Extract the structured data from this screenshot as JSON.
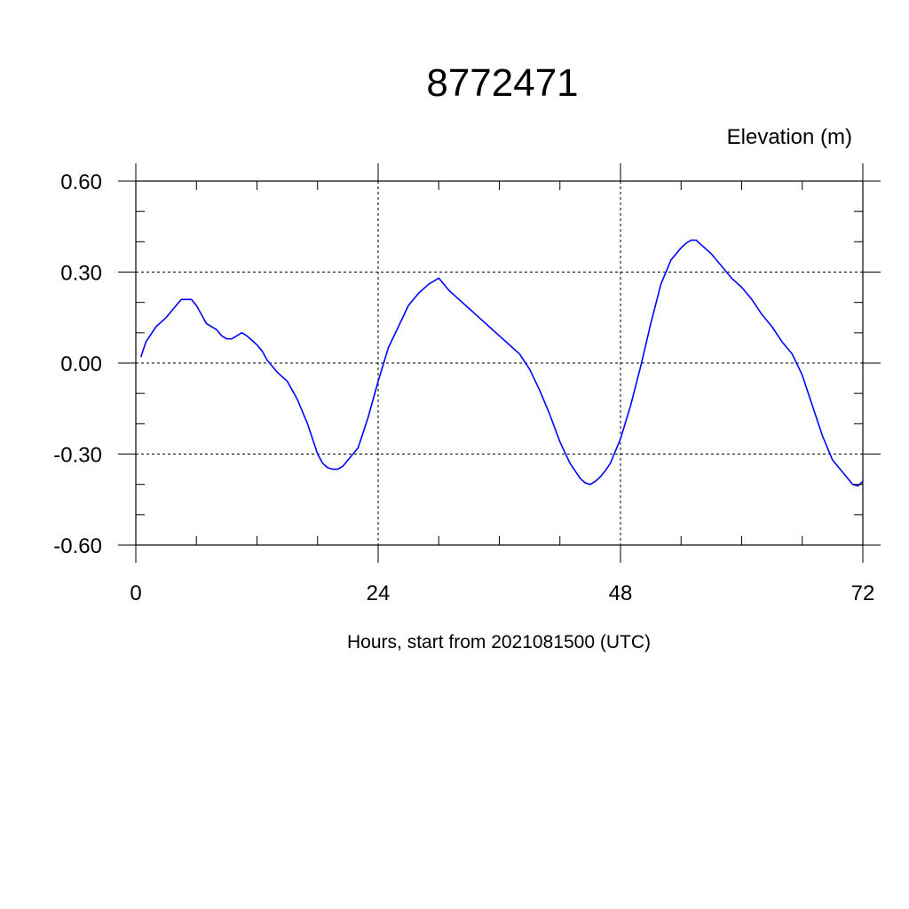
{
  "chart_data": {
    "type": "line",
    "title": "8772471",
    "subtitle": "Elevation (m)",
    "xlabel": "Hours, start from 2021081500 (UTC)",
    "ylabel": "",
    "xlim": [
      0,
      72
    ],
    "ylim": [
      -0.6,
      0.6
    ],
    "xticks": [
      0,
      24,
      48,
      72
    ],
    "xtick_labels": [
      "0",
      "24",
      "48",
      "72"
    ],
    "yticks": [
      -0.6,
      -0.3,
      0.0,
      0.3,
      0.6
    ],
    "ytick_labels": [
      "-0.60",
      "-0.30",
      "0.00",
      "0.30",
      "0.60"
    ],
    "grid": true,
    "series": [
      {
        "color": "#0000ff",
        "x": [
          0.5,
          1,
          2,
          3,
          3.5,
          4,
          4.5,
          5,
          5.5,
          6,
          6.5,
          7,
          8,
          8.5,
          9,
          9.5,
          10,
          10.5,
          11,
          12,
          12.5,
          13,
          14,
          15,
          16,
          17,
          18,
          18.5,
          19,
          19.5,
          20,
          20.5,
          21,
          22,
          23,
          24,
          25,
          26,
          27,
          28,
          29,
          30,
          31,
          32,
          33,
          34,
          35,
          36,
          37,
          38,
          39,
          40,
          41,
          42,
          43,
          44,
          44.5,
          45,
          45.5,
          46,
          46.5,
          47,
          48,
          49,
          50,
          51,
          52,
          53,
          54,
          54.5,
          55,
          55.5,
          56,
          57,
          58,
          59,
          60,
          61,
          62,
          63,
          64,
          65,
          66,
          67,
          68,
          69,
          70,
          71,
          71.5,
          72
        ],
        "y": [
          0.02,
          0.07,
          0.12,
          0.15,
          0.17,
          0.19,
          0.21,
          0.21,
          0.21,
          0.19,
          0.16,
          0.13,
          0.11,
          0.09,
          0.08,
          0.08,
          0.09,
          0.1,
          0.09,
          0.06,
          0.04,
          0.01,
          -0.03,
          -0.06,
          -0.12,
          -0.2,
          -0.3,
          -0.33,
          -0.345,
          -0.35,
          -0.35,
          -0.34,
          -0.32,
          -0.28,
          -0.18,
          -0.06,
          0.05,
          0.12,
          0.19,
          0.23,
          0.26,
          0.28,
          0.24,
          0.21,
          0.18,
          0.15,
          0.12,
          0.09,
          0.06,
          0.03,
          -0.02,
          -0.09,
          -0.17,
          -0.26,
          -0.33,
          -0.38,
          -0.395,
          -0.4,
          -0.39,
          -0.375,
          -0.355,
          -0.33,
          -0.25,
          -0.14,
          -0.01,
          0.13,
          0.26,
          0.34,
          0.38,
          0.395,
          0.405,
          0.405,
          0.39,
          0.36,
          0.32,
          0.28,
          0.25,
          0.21,
          0.16,
          0.12,
          0.07,
          0.03,
          -0.04,
          -0.14,
          -0.24,
          -0.32,
          -0.36,
          -0.4,
          -0.405,
          -0.39
        ]
      }
    ]
  }
}
